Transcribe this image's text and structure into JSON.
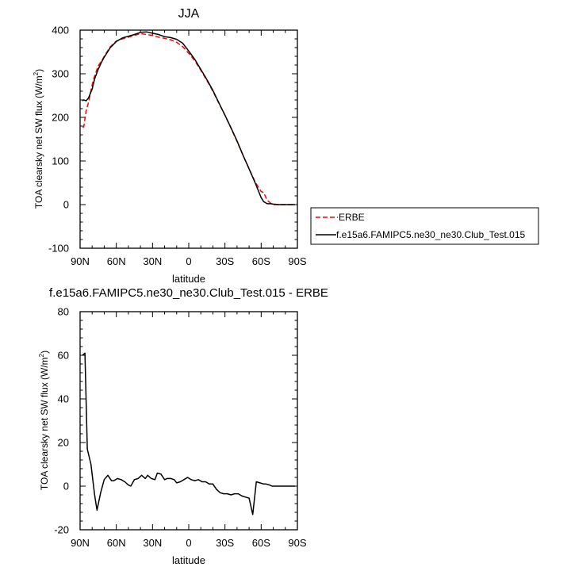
{
  "chart_data": [
    {
      "type": "line",
      "title": "JJA",
      "xlabel": "latitude",
      "ylabel": "TOA clearsky net SW flux (W/m²)",
      "ylabel_main": "TOA clearsky net SW flux (W/m",
      "ylabel_sup": "2",
      "ylabel_end": ")",
      "xlim": [
        90,
        -90
      ],
      "ylim": [
        -100,
        400
      ],
      "xticks": [
        90,
        60,
        30,
        0,
        -30,
        -60,
        -90
      ],
      "xtick_labels": [
        "90N",
        "60N",
        "30N",
        "0",
        "30S",
        "60S",
        "90S"
      ],
      "yticks": [
        -100,
        0,
        100,
        200,
        300,
        400
      ],
      "ytick_labels": [
        "-100",
        "0",
        "100",
        "200",
        "300",
        "400"
      ],
      "legend_position": "right",
      "series": [
        {
          "name": "ERBE",
          "color": "#ff0000",
          "dash": "dashed",
          "x": [
            88,
            87,
            85,
            83,
            80,
            78,
            75,
            72,
            70,
            65,
            60,
            55,
            50,
            45,
            40,
            35,
            30,
            25,
            20,
            15,
            10,
            5,
            0,
            -5,
            -10,
            -15,
            -20,
            -25,
            -30,
            -35,
            -40,
            -45,
            -50,
            -55,
            -60,
            -62,
            -65,
            -68,
            -70,
            -75,
            -80,
            -85,
            -88
          ],
          "y": [
            178,
            178,
            215,
            235,
            275,
            295,
            318,
            330,
            340,
            362,
            375,
            380,
            384,
            388,
            392,
            390,
            388,
            384,
            381,
            378,
            372,
            362,
            347,
            330,
            308,
            285,
            260,
            232,
            205,
            175,
            145,
            113,
            82,
            52,
            30,
            28,
            10,
            3,
            0,
            0,
            0,
            0,
            0
          ]
        },
        {
          "name": "f.e15a6.FAMIPC5.ne30_ne30.Club_Test.015",
          "color": "#000000",
          "dash": "solid",
          "x": [
            88,
            87,
            85,
            83,
            80,
            78,
            75,
            72,
            70,
            65,
            60,
            55,
            50,
            45,
            40,
            35,
            30,
            25,
            20,
            15,
            10,
            5,
            0,
            -5,
            -10,
            -15,
            -20,
            -25,
            -30,
            -35,
            -40,
            -45,
            -50,
            -55,
            -60,
            -62,
            -65,
            -68,
            -70,
            -75,
            -80,
            -85,
            -88
          ],
          "y": [
            238,
            240,
            238,
            245,
            265,
            288,
            310,
            328,
            338,
            360,
            374,
            382,
            386,
            390,
            395,
            396,
            393,
            390,
            385,
            383,
            379,
            370,
            352,
            333,
            310,
            287,
            262,
            233,
            205,
            176,
            146,
            113,
            82,
            50,
            16,
            7,
            2,
            2,
            1,
            0,
            0,
            0,
            0
          ]
        }
      ]
    },
    {
      "type": "line",
      "title": "f.e15a6.FAMIPC5.ne30_ne30.Club_Test.015 - ERBE",
      "xlabel": "latitude",
      "ylabel": "TOA clearsky net SW flux (W/m²)",
      "ylabel_main": "TOA clearsky net SW flux (W/m",
      "ylabel_sup": "2",
      "ylabel_end": ")",
      "xlim": [
        90,
        -90
      ],
      "ylim": [
        -20,
        80
      ],
      "xticks": [
        90,
        60,
        30,
        0,
        -30,
        -60,
        -90
      ],
      "xtick_labels": [
        "90N",
        "60N",
        "30N",
        "0",
        "30S",
        "60S",
        "90S"
      ],
      "yticks": [
        -20,
        0,
        20,
        40,
        60,
        80
      ],
      "ytick_labels": [
        "-20",
        "0",
        "20",
        "40",
        "60",
        "80"
      ],
      "series": [
        {
          "color": "#000000",
          "dash": "solid",
          "x": [
            88,
            86,
            84,
            81,
            78,
            76,
            73,
            70,
            67,
            64,
            62,
            59,
            56,
            53,
            50,
            48,
            45,
            42,
            39,
            36,
            34,
            31,
            28,
            26,
            23,
            20,
            18,
            15,
            12,
            10,
            7,
            4,
            1,
            -2,
            -5,
            -8,
            -11,
            -14,
            -17,
            -20,
            -23,
            -26,
            -29,
            -32,
            -35,
            -38,
            -41,
            -44,
            -47,
            -50,
            -53,
            -56,
            -59,
            -62,
            -64,
            -67,
            -69,
            -71,
            -74,
            -77,
            -80,
            -83,
            -86,
            -88
          ],
          "y": [
            60,
            61,
            17,
            10,
            -4,
            -11,
            -3,
            3,
            5,
            2.5,
            2.5,
            3.5,
            3,
            2,
            0.5,
            0,
            3,
            3.5,
            5,
            3.5,
            5,
            3.5,
            3,
            6,
            5.5,
            3,
            3.5,
            3.5,
            3,
            1.5,
            2,
            3,
            4,
            3,
            2.5,
            3,
            2,
            2,
            1,
            1,
            -1.5,
            -3,
            -3.5,
            -3.5,
            -4,
            -3.5,
            -3.5,
            -4.5,
            -5,
            -5.5,
            -13,
            2,
            1.5,
            1,
            1,
            0.5,
            0,
            0,
            0,
            0,
            0,
            0,
            0,
            0
          ]
        }
      ]
    }
  ]
}
